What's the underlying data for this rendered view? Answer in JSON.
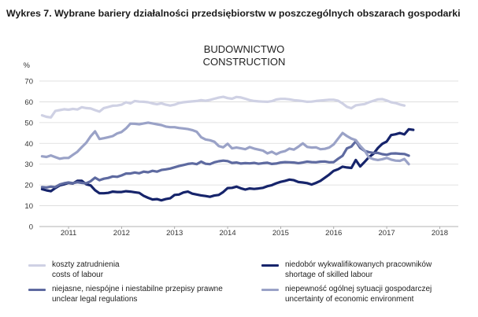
{
  "figure_title": "Wykres 7. Wybrane bariery działalności przedsiębiorstw w poszczególnych obszarach gospodarki",
  "chart_data": {
    "type": "line",
    "title": [
      "BUDOWNICTWO",
      "CONSTRUCTION"
    ],
    "ylabel": "%",
    "ylim": [
      0,
      70
    ],
    "yticks": [
      0,
      10,
      20,
      30,
      40,
      50,
      60,
      70
    ],
    "xlim": [
      2010.45,
      2018.35
    ],
    "xticks": [
      2011,
      2012,
      2013,
      2014,
      2015,
      2016,
      2017,
      2018
    ],
    "x_start": 2010.5,
    "x_step": 0.0833333,
    "series": [
      {
        "name": "koszty zatrudnienia / costs of labour",
        "label_pl": "koszty zatrudnienia",
        "label_en": "costs of labour",
        "color": "#cfd1e4",
        "width": 3.2,
        "values": [
          53.5,
          52.8,
          52.5,
          55.6,
          56.0,
          56.4,
          56.2,
          56.6,
          56.3,
          57.4,
          57.0,
          56.8,
          56.0,
          55.3,
          57.0,
          57.5,
          58.1,
          58.2,
          58.6,
          59.8,
          59.2,
          60.4,
          60.1,
          60.0,
          59.8,
          59.2,
          58.8,
          59.3,
          58.6,
          58.2,
          58.6,
          59.4,
          59.8,
          60.0,
          60.2,
          60.4,
          60.8,
          60.5,
          60.9,
          61.5,
          62.0,
          62.4,
          61.8,
          61.5,
          62.3,
          62.1,
          61.5,
          60.8,
          60.4,
          60.2,
          60.1,
          60.0,
          60.3,
          61.1,
          61.4,
          61.4,
          61.2,
          60.8,
          60.6,
          60.3,
          60.0,
          60.1,
          60.4,
          60.6,
          60.8,
          61.0,
          61.0,
          60.5,
          59.2,
          57.6,
          56.9,
          58.3,
          58.6,
          58.9,
          59.8,
          60.5,
          61.2,
          61.3,
          60.6,
          59.8,
          59.4,
          58.7,
          58.2
        ]
      },
      {
        "name": "niedobór wykwalifikowanych pracowników / shortage of skilled labour",
        "label_pl": "niedobór wykwalifikowanych pracowników",
        "label_en": "shortage of skilled labour",
        "color": "#16246b",
        "width": 3.2,
        "values": [
          18.0,
          17.4,
          17.0,
          18.5,
          19.8,
          20.3,
          21.0,
          20.7,
          22.0,
          22.0,
          20.3,
          19.8,
          17.5,
          16.0,
          16.0,
          16.2,
          16.8,
          16.6,
          16.6,
          17.0,
          16.8,
          16.5,
          16.2,
          14.8,
          13.8,
          13.0,
          13.2,
          12.6,
          13.2,
          13.6,
          15.2,
          15.4,
          16.4,
          16.8,
          15.8,
          15.4,
          15.0,
          14.7,
          14.3,
          14.9,
          15.2,
          16.6,
          18.5,
          18.6,
          19.2,
          18.4,
          17.8,
          18.3,
          18.1,
          18.3,
          18.6,
          19.4,
          19.9,
          20.8,
          21.5,
          22.0,
          22.6,
          22.3,
          21.4,
          21.2,
          20.9,
          20.2,
          21.0,
          22.0,
          23.5,
          25.0,
          26.8,
          27.6,
          28.8,
          28.4,
          28.2,
          32.0,
          28.9,
          31.1,
          33.4,
          35.0,
          37.8,
          39.8,
          40.9,
          44.0,
          44.4,
          45.0,
          44.3,
          46.8,
          46.5
        ]
      },
      {
        "name": "niejasne, niespójne i niestabilne przepisy prawne / unclear legal regulations",
        "label_pl": "niejasne, niespójne i niestabilne przepisy prawne",
        "label_en": "unclear legal regulations",
        "color": "#5e6aa0",
        "width": 3.2,
        "values": [
          19.0,
          18.8,
          19.2,
          19.0,
          20.2,
          20.8,
          21.2,
          20.9,
          21.3,
          21.0,
          20.8,
          21.8,
          23.5,
          22.3,
          23.0,
          23.4,
          24.1,
          23.9,
          24.6,
          25.5,
          25.5,
          26.0,
          25.6,
          26.4,
          26.1,
          26.8,
          26.4,
          27.2,
          27.5,
          27.9,
          28.5,
          29.1,
          29.6,
          30.1,
          30.4,
          30.0,
          31.2,
          30.2,
          30.0,
          30.9,
          31.4,
          31.7,
          31.5,
          30.6,
          30.8,
          30.3,
          30.5,
          30.4,
          30.6,
          30.2,
          30.5,
          30.7,
          30.1,
          30.3,
          30.8,
          31.0,
          30.9,
          30.8,
          30.5,
          30.8,
          31.2,
          31.0,
          30.9,
          31.2,
          31.3,
          30.9,
          31.0,
          32.6,
          34.0,
          37.6,
          38.5,
          41.0,
          37.8,
          36.4,
          35.8,
          35.4,
          35.4,
          34.8,
          34.5,
          35.1,
          35.2,
          35.0,
          34.9,
          34.1
        ]
      },
      {
        "name": "niepewność ogólnej sytuacji gospodarczej / uncertainty of economic environment",
        "label_pl": "niepewność ogólnej sytuacji gospodarczej",
        "label_en": "uncertainty of economic environment",
        "color": "#9aa2c7",
        "width": 3.2,
        "values": [
          33.8,
          33.5,
          34.2,
          33.4,
          32.6,
          33.0,
          33.0,
          34.5,
          36.0,
          38.2,
          40.3,
          43.4,
          45.8,
          42.1,
          42.5,
          43.0,
          43.5,
          44.8,
          45.5,
          47.2,
          49.5,
          49.4,
          49.2,
          49.6,
          50.0,
          49.6,
          49.2,
          48.8,
          48.1,
          47.8,
          47.8,
          47.4,
          47.2,
          46.9,
          46.4,
          45.6,
          43.0,
          41.9,
          41.5,
          40.8,
          38.7,
          38.1,
          39.8,
          37.6,
          38.0,
          37.6,
          37.2,
          38.2,
          37.5,
          37.0,
          36.5,
          35.2,
          36.0,
          34.8,
          35.8,
          36.3,
          37.5,
          37.0,
          38.4,
          40.0,
          38.3,
          38.0,
          38.1,
          37.2,
          37.4,
          38.0,
          39.5,
          42.3,
          45.0,
          43.5,
          42.3,
          41.6,
          38.8,
          36.6,
          33.2,
          32.4,
          32.0,
          32.4,
          33.0,
          32.2,
          31.7,
          31.6,
          32.5,
          30.0
        ]
      }
    ]
  }
}
